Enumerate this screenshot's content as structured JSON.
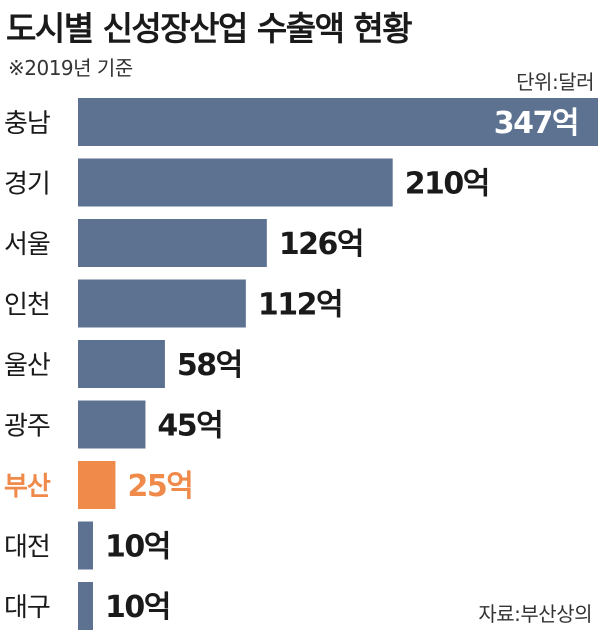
{
  "title": "도시별 신성장산업 수출액 현황",
  "subtitle": "※2019년 기준",
  "unit_label": "단위:달러",
  "source": "자료:부산상의",
  "colors": {
    "bar": "#5d7191",
    "highlight": "#f08a4b",
    "text": "#1a1a1a",
    "inside_label": "#ffffff"
  },
  "chart_data": {
    "type": "bar",
    "orientation": "horizontal",
    "categories": [
      "충남",
      "경기",
      "서울",
      "인천",
      "울산",
      "광주",
      "부산",
      "대전",
      "대구"
    ],
    "values": [
      347,
      210,
      126,
      112,
      58,
      45,
      25,
      10,
      10
    ],
    "labels": [
      "347억",
      "210억",
      "126억",
      "112억",
      "58억",
      "45억",
      "25억",
      "10억",
      "10억"
    ],
    "highlight_category": "부산",
    "ylabel": "",
    "xlabel": "",
    "xlim": [
      0,
      347
    ],
    "grid": false,
    "legend": "none"
  }
}
